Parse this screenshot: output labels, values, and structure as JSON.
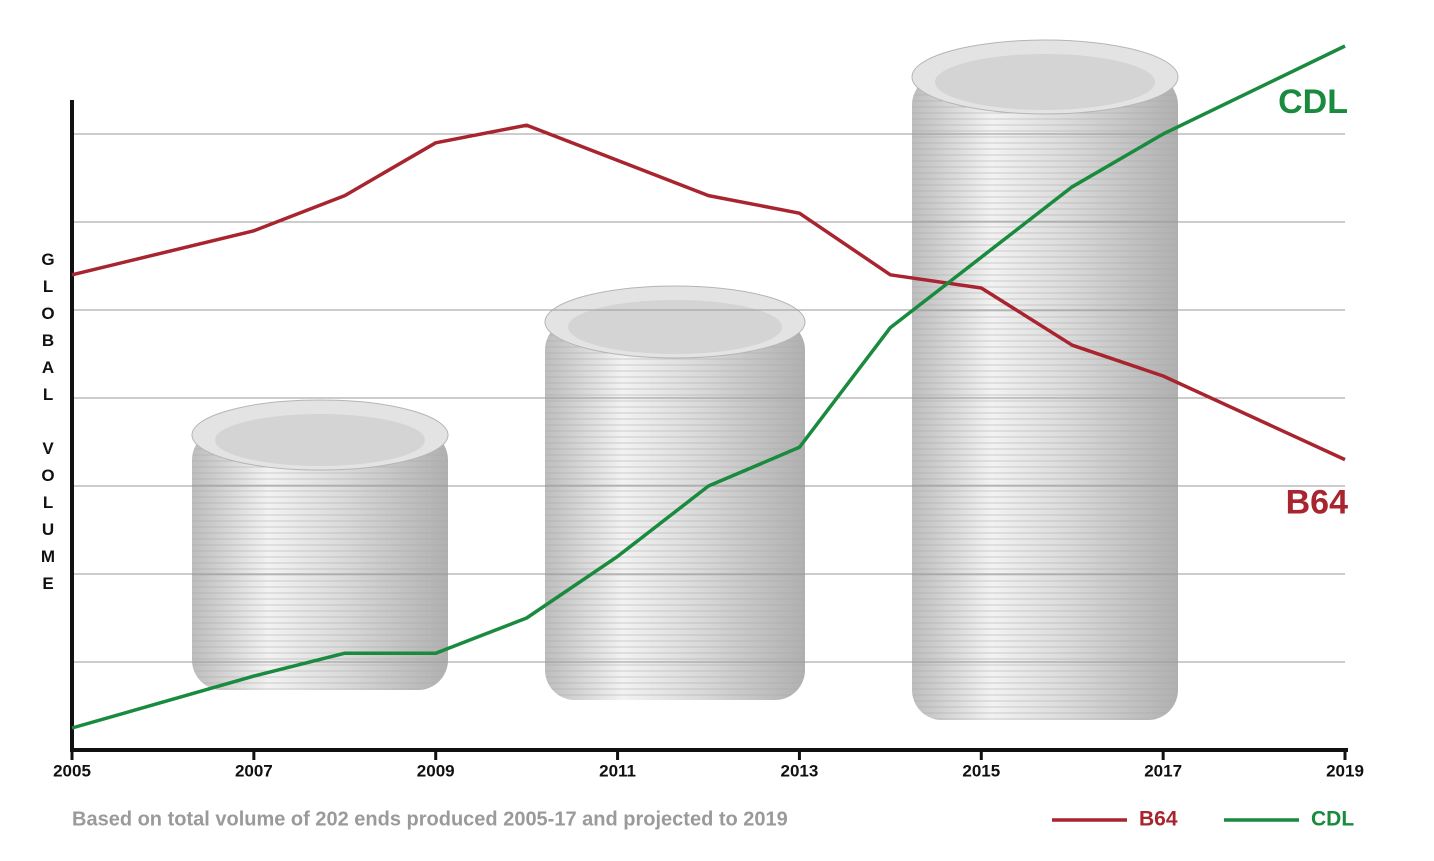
{
  "chart_data": {
    "type": "line",
    "y_label": "GLOBAL VOLUME",
    "footnote": "Based on total volume of 202 ends produced 2005-17 and projected to 2019",
    "x": [
      2005,
      2007,
      2008,
      2009,
      2010,
      2011,
      2012,
      2013,
      2014,
      2015,
      2016,
      2017,
      2019
    ],
    "xlim": [
      2005,
      2019
    ],
    "xticks": [
      2005,
      2007,
      2009,
      2011,
      2013,
      2015,
      2017,
      2019
    ],
    "ylim": [
      0,
      8.5
    ],
    "yticks": [
      1,
      2,
      3,
      4,
      5,
      6,
      7
    ],
    "ytick_labels": false,
    "grid": true,
    "legend": "bottom-right",
    "series": [
      {
        "name": "B64",
        "color": "#a8242f",
        "values": [
          5.4,
          5.9,
          6.3,
          6.9,
          7.1,
          6.7,
          6.3,
          6.1,
          5.4,
          5.25,
          4.6,
          4.25,
          3.3
        ]
      },
      {
        "name": "CDL",
        "color": "#1a8a3e",
        "values": [
          0.25,
          0.84,
          1.1,
          1.1,
          1.5,
          2.2,
          3.0,
          3.44,
          4.8,
          5.6,
          6.4,
          7.0,
          8.0
        ]
      }
    ]
  }
}
